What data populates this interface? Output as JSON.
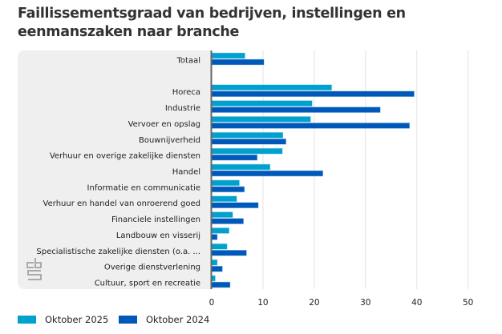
{
  "title": "Faillissementsgraad van bedrijven, instellingen en eenmanszaken naar branche",
  "colors": {
    "oktober_2025": "#00a1cd",
    "oktober_2024": "#0058b8"
  },
  "chart_data": {
    "type": "bar",
    "orientation": "horizontal",
    "title": "Faillissementsgraad van bedrijven, instellingen en eenmanszaken naar branche",
    "categories": [
      "Totaal",
      "",
      "Horeca",
      "Industrie",
      "Vervoer en opslag",
      "Bouwnijverheid",
      "Verhuur en overige zakelijke diensten",
      "Handel",
      "Informatie en communicatie",
      "Verhuur en handel van onroerend goed",
      "Financiele instellingen",
      "Landbouw en visserij",
      "Specialistische zakelijke diensten (o.a. ...",
      "Overige dienstverlening",
      "Cultuur, sport en recreatie"
    ],
    "series": [
      {
        "name": "Oktober 2025",
        "values": [
          6.5,
          null,
          23.4,
          19.6,
          19.3,
          13.9,
          13.8,
          11.4,
          5.4,
          4.9,
          4.1,
          3.4,
          3.0,
          1.1,
          0.7
        ]
      },
      {
        "name": "Oktober 2024",
        "values": [
          10.2,
          null,
          39.5,
          32.9,
          38.6,
          14.5,
          8.9,
          21.7,
          6.4,
          9.1,
          6.2,
          1.1,
          6.8,
          2.1,
          3.6
        ]
      }
    ],
    "xlim": [
      0,
      50
    ],
    "xticks": [
      "0",
      "10",
      "20",
      "30",
      "40",
      "50"
    ],
    "grid": true,
    "legend": "bottom-left",
    "logo": "cbs"
  }
}
